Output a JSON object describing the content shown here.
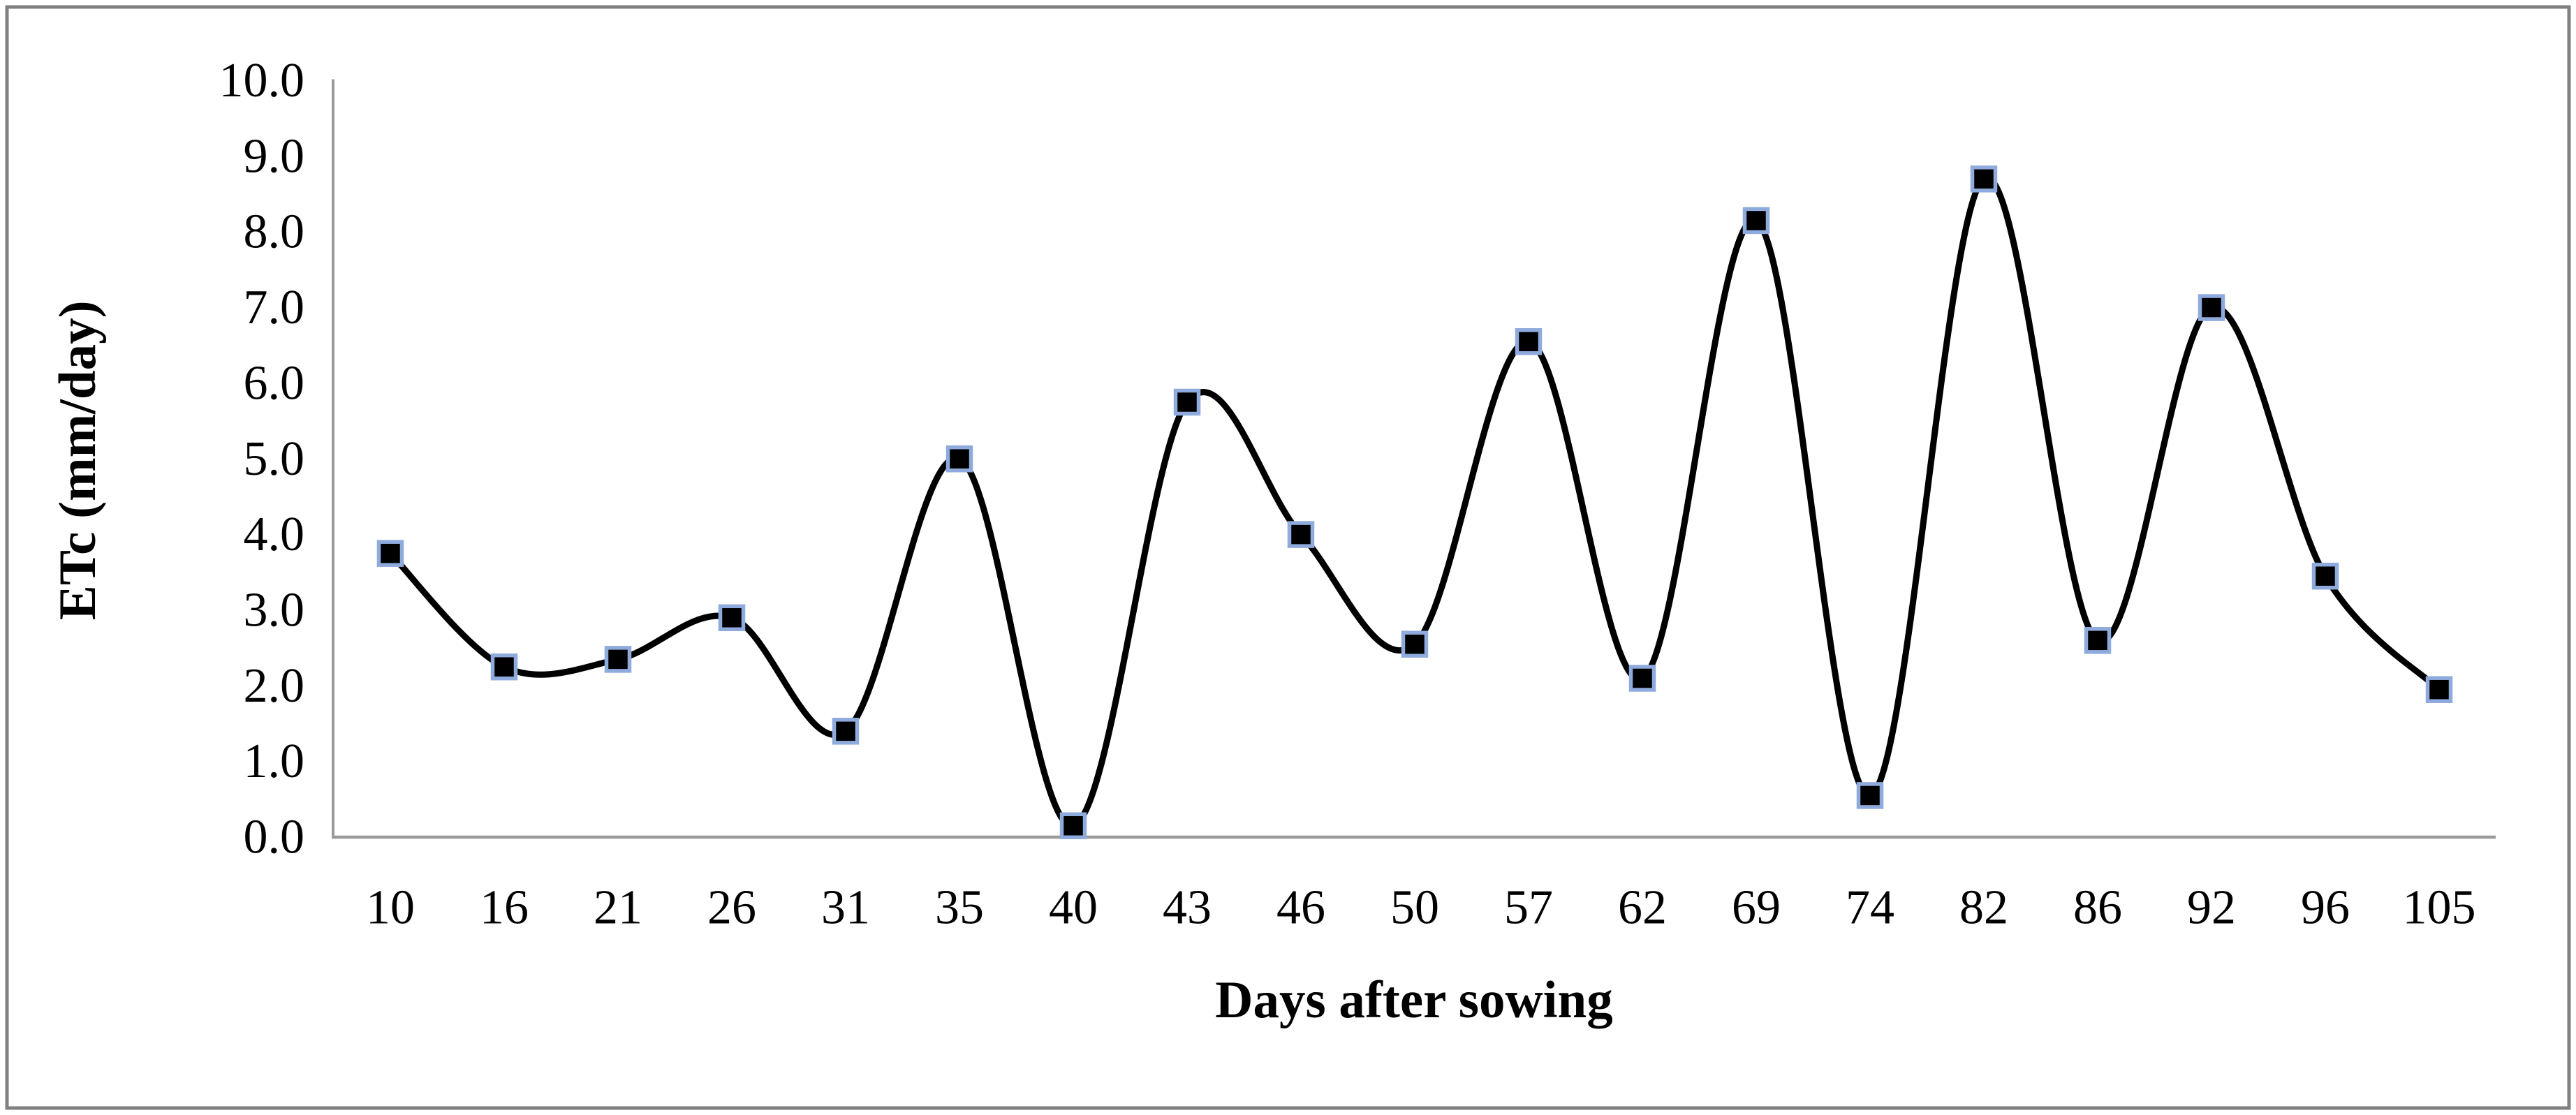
{
  "chart_data": {
    "type": "line",
    "title": "",
    "xlabel": "Days after sowing",
    "ylabel": "ETc (mm/day)",
    "categories": [
      10,
      16,
      21,
      26,
      31,
      35,
      40,
      43,
      46,
      50,
      57,
      62,
      69,
      74,
      82,
      86,
      92,
      96,
      105
    ],
    "series": [
      {
        "name": "ETc",
        "values": [
          3.75,
          2.25,
          2.35,
          2.9,
          1.4,
          5.0,
          0.15,
          5.75,
          4.0,
          2.55,
          6.55,
          2.1,
          8.15,
          0.55,
          8.7,
          2.6,
          7.0,
          3.45,
          1.95
        ]
      }
    ],
    "ylim": [
      0,
      10
    ],
    "ytick_step": 1.0,
    "ytick_labels": [
      "0.0",
      "1.0",
      "2.0",
      "3.0",
      "4.0",
      "5.0",
      "6.0",
      "7.0",
      "8.0",
      "9.0",
      "10.0"
    ],
    "grid": false,
    "legend_position": "none",
    "line_smooth": true,
    "marker_shape": "square",
    "colors": {
      "line": "#000000",
      "marker_fill": "#000000",
      "marker_border": "#8faadc",
      "axis_line": "#9a9a9a",
      "figure_border": "#808080",
      "text": "#000000",
      "background": "#ffffff"
    }
  }
}
